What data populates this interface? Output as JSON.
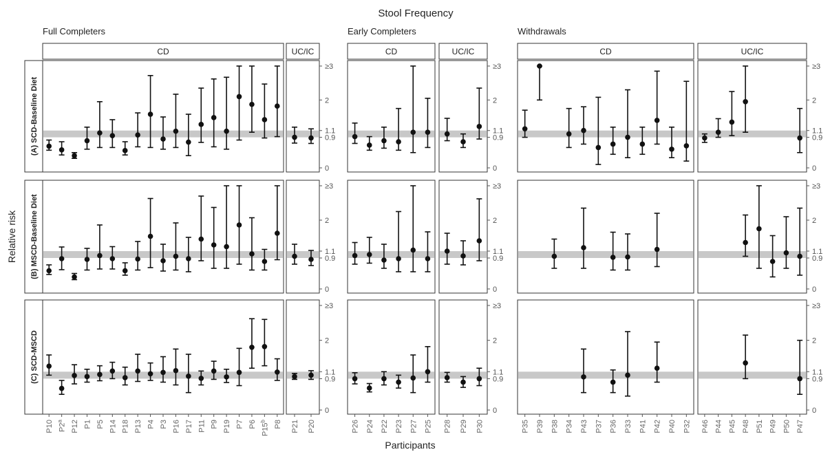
{
  "title": "Stool Frequency",
  "xlabel": "Participants",
  "ylabel": "Relative risk",
  "groups": [
    "Full Completers",
    "Early Completers",
    "Withdrawals"
  ],
  "rows": [
    "(A) SCD-Baseline Diet",
    "(B) MSCD-Baseline Diet",
    "(C) SCD-MSCD"
  ],
  "reference_band": [
    0.9,
    1.1
  ],
  "y_ticks": [
    "0",
    "0.9",
    "1.1",
    "2",
    "≥3"
  ],
  "chart_data": {
    "type": "scatter",
    "title": "Stool Frequency",
    "xlabel": "Participants",
    "ylabel": "Relative risk",
    "ylim": [
      0,
      3
    ],
    "y_cap_label": "≥3",
    "panels": [
      {
        "group": "Full Completers",
        "subtype": "CD",
        "participants": [
          "P10",
          "P2a",
          "P12",
          "P1",
          "P5",
          "P14",
          "P18",
          "P13",
          "P4",
          "P3",
          "P16",
          "P17",
          "P11",
          "P9",
          "P19",
          "P7",
          "P6",
          "P15b",
          "P8"
        ],
        "A": [
          [
            0.64,
            0.52,
            0.82
          ],
          [
            0.53,
            0.38,
            0.77
          ],
          [
            0.36,
            0.28,
            0.45
          ],
          [
            0.8,
            0.55,
            1.2
          ],
          [
            1.03,
            0.6,
            1.95
          ],
          [
            0.95,
            0.6,
            1.42
          ],
          [
            0.51,
            0.38,
            0.77
          ],
          [
            0.97,
            0.62,
            1.62
          ],
          [
            1.58,
            0.6,
            2.72
          ],
          [
            0.85,
            0.55,
            1.5
          ],
          [
            1.08,
            0.6,
            2.17
          ],
          [
            0.76,
            0.36,
            1.58
          ],
          [
            1.28,
            0.75,
            2.35
          ],
          [
            1.48,
            0.62,
            2.62
          ],
          [
            1.08,
            0.55,
            2.67
          ],
          [
            2.1,
            0.82,
            3.0
          ],
          [
            1.87,
            1.05,
            3.0
          ],
          [
            1.42,
            0.88,
            2.47
          ],
          [
            1.82,
            0.92,
            3.0
          ]
        ],
        "B": [
          [
            0.53,
            0.42,
            0.7
          ],
          [
            0.88,
            0.56,
            1.22
          ],
          [
            0.35,
            0.27,
            0.45
          ],
          [
            0.86,
            0.55,
            1.18
          ],
          [
            0.97,
            0.58,
            1.86
          ],
          [
            0.88,
            0.58,
            1.23
          ],
          [
            0.53,
            0.4,
            0.76
          ],
          [
            0.87,
            0.55,
            1.38
          ],
          [
            1.53,
            0.62,
            2.63
          ],
          [
            0.82,
            0.52,
            1.3
          ],
          [
            0.95,
            0.55,
            1.92
          ],
          [
            0.88,
            0.5,
            1.5
          ],
          [
            1.45,
            0.82,
            2.7
          ],
          [
            1.28,
            0.6,
            2.37
          ],
          [
            1.23,
            0.6,
            3.0
          ],
          [
            1.86,
            0.72,
            3.0
          ],
          [
            1.02,
            0.55,
            2.07
          ],
          [
            0.8,
            0.55,
            1.15
          ],
          [
            1.62,
            0.85,
            3.0
          ]
        ],
        "C": [
          [
            1.26,
            1.0,
            1.58
          ],
          [
            0.62,
            0.45,
            0.85
          ],
          [
            0.99,
            0.75,
            1.3
          ],
          [
            0.96,
            0.8,
            1.17
          ],
          [
            1.02,
            0.84,
            1.27
          ],
          [
            1.12,
            0.9,
            1.37
          ],
          [
            0.93,
            0.72,
            1.23
          ],
          [
            1.12,
            0.82,
            1.6
          ],
          [
            1.04,
            0.85,
            1.35
          ],
          [
            1.08,
            0.8,
            1.53
          ],
          [
            1.13,
            0.72,
            1.75
          ],
          [
            0.97,
            0.5,
            1.6
          ],
          [
            0.91,
            0.72,
            1.12
          ],
          [
            1.12,
            0.88,
            1.4
          ],
          [
            0.95,
            0.79,
            1.17
          ],
          [
            1.08,
            0.7,
            1.77
          ],
          [
            1.8,
            1.2,
            2.62
          ],
          [
            1.82,
            1.27,
            2.6
          ],
          [
            1.09,
            0.85,
            1.47
          ]
        ]
      },
      {
        "group": "Full Completers",
        "subtype": "UC/IC",
        "participants": [
          "P21",
          "P20"
        ],
        "A": [
          [
            0.9,
            0.73,
            1.2
          ],
          [
            0.88,
            0.72,
            1.15
          ]
        ],
        "B": [
          [
            0.95,
            0.72,
            1.3
          ],
          [
            0.86,
            0.68,
            1.12
          ]
        ],
        "C": [
          [
            0.96,
            0.88,
            1.05
          ],
          [
            1.0,
            0.88,
            1.13
          ]
        ]
      },
      {
        "group": "Early Completers",
        "subtype": "CD",
        "participants": [
          "P26",
          "P24",
          "P22",
          "P23",
          "P27",
          "P25"
        ],
        "A": [
          [
            0.92,
            0.72,
            1.32
          ],
          [
            0.67,
            0.52,
            0.92
          ],
          [
            0.8,
            0.58,
            1.2
          ],
          [
            0.77,
            0.52,
            1.75
          ],
          [
            1.05,
            0.45,
            3.0
          ],
          [
            1.05,
            0.6,
            2.05
          ]
        ],
        "B": [
          [
            0.97,
            0.72,
            1.35
          ],
          [
            1.0,
            0.75,
            1.5
          ],
          [
            0.84,
            0.6,
            1.3
          ],
          [
            0.88,
            0.5,
            2.25
          ],
          [
            1.13,
            0.5,
            3.0
          ],
          [
            0.88,
            0.5,
            1.66
          ]
        ],
        "C": [
          [
            0.9,
            0.75,
            1.07
          ],
          [
            0.63,
            0.52,
            0.76
          ],
          [
            0.9,
            0.72,
            1.1
          ],
          [
            0.8,
            0.63,
            1.0
          ],
          [
            0.92,
            0.5,
            1.58
          ],
          [
            1.1,
            0.8,
            1.82
          ]
        ]
      },
      {
        "group": "Early Completers",
        "subtype": "UC/IC",
        "participants": [
          "P28",
          "P29",
          "P30"
        ],
        "A": [
          [
            1.0,
            0.8,
            1.46
          ],
          [
            0.77,
            0.6,
            1.0
          ],
          [
            1.22,
            0.85,
            2.35
          ]
        ],
        "B": [
          [
            1.1,
            0.72,
            1.62
          ],
          [
            0.96,
            0.7,
            1.4
          ],
          [
            1.4,
            0.82,
            2.62
          ]
        ],
        "C": [
          [
            0.93,
            0.8,
            1.08
          ],
          [
            0.8,
            0.65,
            0.96
          ],
          [
            0.9,
            0.7,
            1.2
          ]
        ]
      },
      {
        "group": "Withdrawals",
        "subtype": "CD",
        "participants": [
          "P35",
          "P39",
          "P38",
          "P34",
          "P43",
          "P37",
          "P36",
          "P33",
          "P41",
          "P42",
          "P40",
          "P32"
        ],
        "A": [
          [
            1.15,
            0.9,
            1.7
          ],
          [
            3.0,
            2.0,
            3.0
          ],
          null,
          [
            1.0,
            0.6,
            1.75
          ],
          [
            1.1,
            0.7,
            1.8
          ],
          [
            0.6,
            0.1,
            2.08
          ],
          [
            0.7,
            0.4,
            1.2
          ],
          [
            0.9,
            0.3,
            2.3
          ],
          [
            0.7,
            0.4,
            1.2
          ],
          [
            1.4,
            0.7,
            2.85
          ],
          [
            0.55,
            0.3,
            1.2
          ],
          [
            0.65,
            0.2,
            2.55
          ]
        ],
        "B": [
          null,
          null,
          [
            0.95,
            0.6,
            1.45
          ],
          null,
          [
            1.2,
            0.6,
            2.35
          ],
          null,
          [
            0.92,
            0.55,
            1.65
          ],
          [
            0.93,
            0.55,
            1.6
          ],
          null,
          [
            1.15,
            0.65,
            2.2
          ],
          null,
          null
        ],
        "C": [
          null,
          null,
          null,
          null,
          [
            0.95,
            0.5,
            1.75
          ],
          null,
          [
            0.8,
            0.5,
            1.15
          ],
          [
            1.0,
            0.4,
            2.25
          ],
          null,
          [
            1.2,
            0.8,
            1.95
          ],
          null,
          null
        ]
      },
      {
        "group": "Withdrawals",
        "subtype": "UC/IC",
        "participants": [
          "P46",
          "P44",
          "P45",
          "P48",
          "P51",
          "P49",
          "P50",
          "P47"
        ],
        "A": [
          [
            0.88,
            0.75,
            1.0
          ],
          [
            1.05,
            0.9,
            1.45
          ],
          [
            1.35,
            0.95,
            2.25
          ],
          [
            1.95,
            1.05,
            3.0
          ],
          null,
          null,
          null,
          [
            0.88,
            0.45,
            1.75
          ]
        ],
        "B": [
          null,
          null,
          null,
          [
            1.35,
            0.95,
            2.15
          ],
          [
            1.75,
            0.6,
            3.0
          ],
          [
            0.8,
            0.35,
            1.55
          ],
          [
            1.05,
            0.6,
            2.1
          ],
          [
            0.95,
            0.4,
            2.35
          ]
        ],
        "C": [
          null,
          null,
          null,
          [
            1.35,
            0.9,
            2.15
          ],
          null,
          null,
          null,
          [
            0.9,
            0.45,
            2.0
          ]
        ]
      }
    ]
  }
}
